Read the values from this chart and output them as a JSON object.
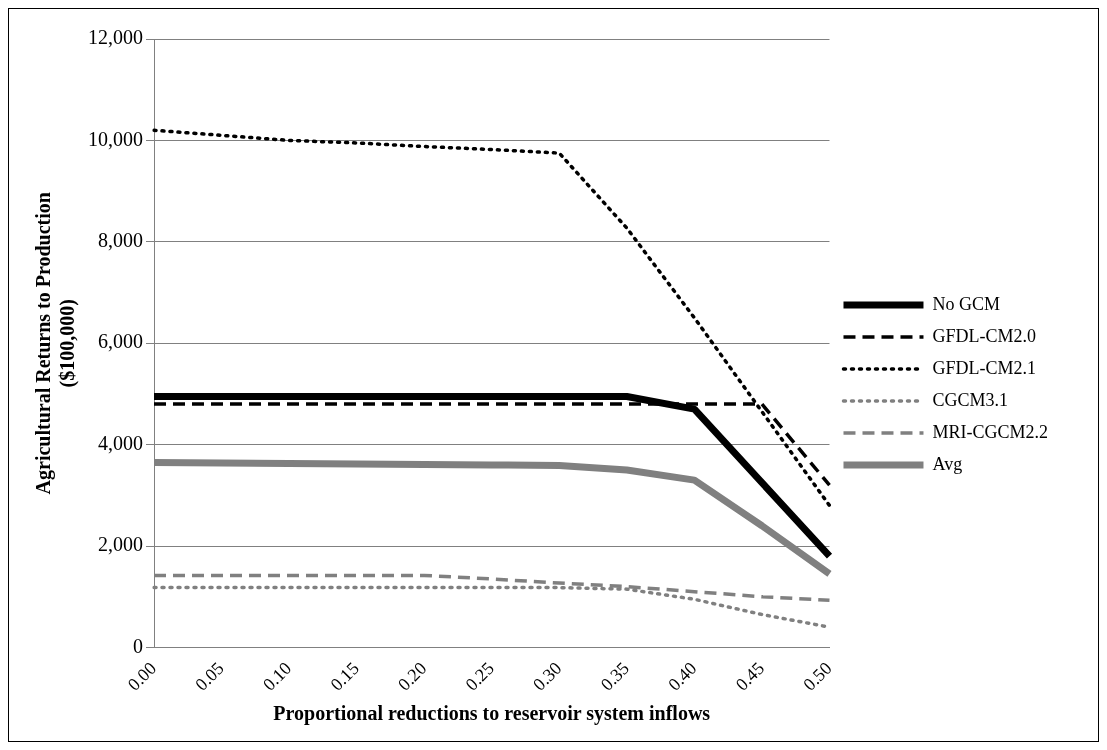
{
  "chart_data": {
    "type": "line",
    "xlabel": "Proportional reductions to reservoir system inflows",
    "ylabel": "Agricultural Returns to Production ($100,000)",
    "categories": [
      "0.00",
      "0.05",
      "0.10",
      "0.15",
      "0.20",
      "0.25",
      "0.30",
      "0.35",
      "0.40",
      "0.45",
      "0.50"
    ],
    "series": [
      {
        "name": "No GCM",
        "color": "#000000",
        "line_style": "solid",
        "values": [
          4950,
          4950,
          4950,
          4950,
          4950,
          4950,
          4950,
          4950,
          4700,
          3250,
          1800
        ]
      },
      {
        "name": "GFDL-CM2.0",
        "color": "#000000",
        "line_style": "dashed",
        "values": [
          4800,
          4800,
          4800,
          4800,
          4800,
          4800,
          4800,
          4800,
          4800,
          4800,
          3200
        ]
      },
      {
        "name": "GFDL-CM2.1",
        "color": "#000000",
        "line_style": "dotted",
        "values": [
          10200,
          10100,
          10000,
          9950,
          9880,
          9820,
          9750,
          8270,
          6500,
          4650,
          2800
        ]
      },
      {
        "name": "CGCM3.1",
        "color": "#808080",
        "line_style": "dotted",
        "values": [
          1180,
          1180,
          1180,
          1180,
          1180,
          1180,
          1180,
          1150,
          950,
          650,
          400
        ]
      },
      {
        "name": "MRI-CGCM2.2",
        "color": "#808080",
        "line_style": "dashed",
        "values": [
          1420,
          1420,
          1420,
          1420,
          1420,
          1350,
          1270,
          1200,
          1100,
          1000,
          930
        ]
      },
      {
        "name": "Avg",
        "color": "#808080",
        "line_style": "solid",
        "values": [
          3650,
          3640,
          3630,
          3620,
          3610,
          3600,
          3590,
          3500,
          3300,
          2400,
          1450
        ]
      }
    ],
    "ylim": [
      0,
      12000
    ],
    "yticks": [
      0,
      {
        "value": 2000,
        "label": "2,000"
      },
      {
        "value": 4000,
        "label": "4,000"
      },
      {
        "value": 6000,
        "label": "6,000"
      },
      {
        "value": 8000,
        "label": "8,000"
      },
      {
        "value": 10000,
        "label": "10,000"
      },
      {
        "value": 12000,
        "label": "12,000"
      }
    ],
    "grid": "y",
    "legend": "right",
    "marker": "none"
  }
}
